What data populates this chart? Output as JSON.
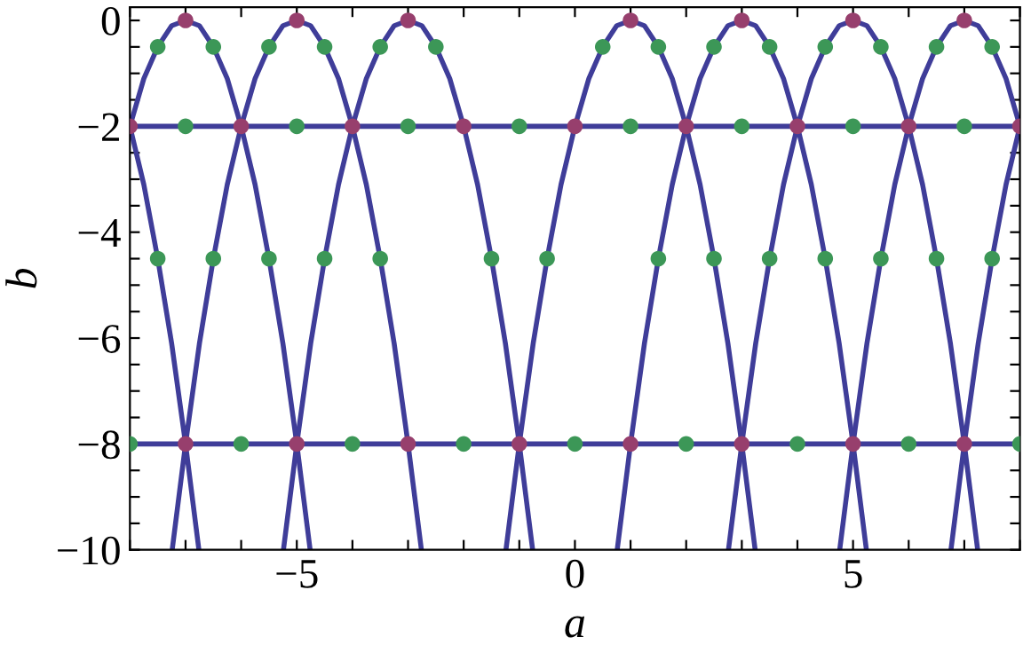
{
  "chart_data": {
    "type": "line",
    "xlabel": "a",
    "ylabel": "b",
    "xlim": [
      -8,
      8
    ],
    "ylim": [
      -10,
      0.25
    ],
    "xticks": [
      {
        "value": -8,
        "label": null
      },
      {
        "value": -7,
        "label": null
      },
      {
        "value": -6,
        "label": null
      },
      {
        "value": -5,
        "label": "−5"
      },
      {
        "value": -4,
        "label": null
      },
      {
        "value": -3,
        "label": null
      },
      {
        "value": -2,
        "label": null
      },
      {
        "value": -1,
        "label": null
      },
      0,
      {
        "value": 1,
        "label": null
      },
      {
        "value": 2,
        "label": null
      },
      {
        "value": 3,
        "label": null
      },
      {
        "value": 4,
        "label": null
      },
      5,
      {
        "value": 6,
        "label": null
      },
      {
        "value": 7,
        "label": null
      },
      {
        "value": 8,
        "label": null
      }
    ],
    "yticks": [
      {
        "value": -10,
        "label": "−10"
      },
      {
        "value": -9.5,
        "label": null
      },
      {
        "value": -9,
        "label": null
      },
      {
        "value": -8.5,
        "label": null
      },
      {
        "value": -8,
        "label": "−8"
      },
      {
        "value": -7.5,
        "label": null
      },
      {
        "value": -7,
        "label": null
      },
      {
        "value": -6.5,
        "label": null
      },
      {
        "value": -6,
        "label": "−6"
      },
      {
        "value": -5.5,
        "label": null
      },
      {
        "value": -5,
        "label": null
      },
      {
        "value": -4.5,
        "label": null
      },
      {
        "value": -4,
        "label": "−4"
      },
      {
        "value": -3.5,
        "label": null
      },
      {
        "value": -3,
        "label": null
      },
      {
        "value": -2.5,
        "label": null
      },
      {
        "value": -2,
        "label": "−2"
      },
      {
        "value": -1.5,
        "label": null
      },
      {
        "value": -1,
        "label": null
      },
      {
        "value": -0.5,
        "label": null
      },
      0
    ],
    "grid": false,
    "line_style": "solid",
    "series": [
      {
        "color": "#3f3d99",
        "x": [
          -8,
          -7.75,
          -7.5,
          -7.25,
          -7,
          -6.76
        ],
        "values": [
          -2,
          -3.1,
          -4.5,
          -6.1,
          -8,
          -10
        ]
      },
      {
        "color": "#3f3d99",
        "x": [
          -8,
          -7.75,
          -7.5,
          -7.25,
          -7,
          -6.75,
          -6.5,
          -6.25,
          -6,
          -5.75,
          -5.5,
          -5.25,
          -5,
          -4.76
        ],
        "values": [
          -2,
          -1.1,
          -0.5,
          -0.1,
          0,
          -0.1,
          -0.5,
          -1.1,
          -2,
          -3.1,
          -4.5,
          -6.1,
          -8,
          -10
        ]
      },
      {
        "color": "#3f3d99",
        "x": [
          -7.24,
          -7,
          -6.75,
          -6.5,
          -6.25,
          -6,
          -5.75,
          -5.5,
          -5.25,
          -5,
          -4.75,
          -4.5,
          -4.25,
          -4,
          -3.75,
          -3.5,
          -3.25,
          -3,
          -2.76
        ],
        "values": [
          -10,
          -8,
          -6.1,
          -4.5,
          -3.1,
          -2,
          -1.1,
          -0.5,
          -0.1,
          0,
          -0.1,
          -0.5,
          -1.1,
          -2,
          -3.1,
          -4.5,
          -6.1,
          -8,
          -10
        ]
      },
      {
        "color": "#3f3d99",
        "x": [
          -5.24,
          -5,
          -4.75,
          -4.5,
          -4.25,
          -4,
          -3.75,
          -3.5,
          -3.25,
          -3,
          -2.75,
          -2.5,
          -2.25,
          -2,
          -1.75,
          -1.5,
          -1.25,
          -1,
          -0.76
        ],
        "values": [
          -10,
          -8,
          -6.1,
          -4.5,
          -3.1,
          -2,
          -1.1,
          -0.5,
          -0.1,
          0,
          -0.1,
          -0.5,
          -1.1,
          -2,
          -3.1,
          -4.5,
          -6.1,
          -8,
          -10
        ]
      },
      {
        "color": "#3f3d99",
        "x": [
          -1.24,
          -1,
          -0.75,
          -0.5,
          -0.25,
          0,
          0.25,
          0.5,
          0.75,
          1,
          1.25,
          1.5,
          1.75,
          2,
          2.25,
          2.5,
          2.75,
          3,
          3.24
        ],
        "values": [
          -10,
          -8,
          -6.1,
          -4.5,
          -3.1,
          -2,
          -1.1,
          -0.5,
          -0.1,
          0,
          -0.1,
          -0.5,
          -1.1,
          -2,
          -3.1,
          -4.5,
          -6.1,
          -8,
          -10
        ]
      },
      {
        "color": "#3f3d99",
        "x": [
          0.76,
          1,
          1.25,
          1.5,
          1.75,
          2,
          2.25,
          2.5,
          2.75,
          3,
          3.25,
          3.5,
          3.75,
          4,
          4.25,
          4.5,
          4.75,
          5,
          5.24
        ],
        "values": [
          -10,
          -8,
          -6.1,
          -4.5,
          -3.1,
          -2,
          -1.1,
          -0.5,
          -0.1,
          0,
          -0.1,
          -0.5,
          -1.1,
          -2,
          -3.1,
          -4.5,
          -6.1,
          -8,
          -10
        ]
      },
      {
        "color": "#3f3d99",
        "x": [
          2.76,
          3,
          3.25,
          3.5,
          3.75,
          4,
          4.25,
          4.5,
          4.75,
          5,
          5.25,
          5.5,
          5.75,
          6,
          6.25,
          6.5,
          6.75,
          7,
          7.24
        ],
        "values": [
          -10,
          -8,
          -6.1,
          -4.5,
          -3.1,
          -2,
          -1.1,
          -0.5,
          -0.1,
          0,
          -0.1,
          -0.5,
          -1.1,
          -2,
          -3.1,
          -4.5,
          -6.1,
          -8,
          -10
        ]
      },
      {
        "color": "#3f3d99",
        "x": [
          4.76,
          5,
          5.25,
          5.5,
          5.75,
          6,
          6.25,
          6.5,
          6.75,
          7,
          7.25,
          7.5,
          7.75,
          8
        ],
        "values": [
          -10,
          -8,
          -6.1,
          -4.5,
          -3.1,
          -2,
          -1.1,
          -0.5,
          -0.1,
          0,
          -0.1,
          -0.5,
          -1.1,
          -2
        ]
      },
      {
        "color": "#3f3d99",
        "x": [
          6.76,
          7,
          7.25,
          7.5,
          7.75,
          8
        ],
        "values": [
          -10,
          -8,
          -6.1,
          -4.5,
          -3.1,
          -2
        ]
      },
      {
        "color": "#3f3d99",
        "x": [
          -8,
          8
        ],
        "values": [
          -2,
          -2
        ]
      },
      {
        "color": "#3f3d99",
        "x": [
          -8,
          8
        ],
        "values": [
          -8,
          -8
        ]
      },
      {
        "type": "scatter",
        "marker": "circle",
        "color": "#3c9757",
        "x": [
          -7.5,
          -6.5,
          -5.5,
          -4.5,
          -3.5,
          -2.5,
          0.5,
          1.5,
          2.5,
          3.5,
          4.5,
          5.5,
          6.5,
          7.5,
          -7,
          -5,
          -3,
          -1,
          1,
          3,
          5,
          7,
          -7.5,
          -6.5,
          -5.5,
          -4.5,
          -3.5,
          -1.5,
          -0.5,
          1.5,
          2.5,
          3.5,
          4.5,
          5.5,
          6.5,
          7.5,
          -8,
          -6,
          -4,
          -2,
          0,
          2,
          4,
          6,
          8
        ],
        "values": [
          -0.5,
          -0.5,
          -0.5,
          -0.5,
          -0.5,
          -0.5,
          -0.5,
          -0.5,
          -0.5,
          -0.5,
          -0.5,
          -0.5,
          -0.5,
          -0.5,
          -2,
          -2,
          -2,
          -2,
          -2,
          -2,
          -2,
          -2,
          -4.5,
          -4.5,
          -4.5,
          -4.5,
          -4.5,
          -4.5,
          -4.5,
          -4.5,
          -4.5,
          -4.5,
          -4.5,
          -4.5,
          -4.5,
          -4.5,
          -8,
          -8,
          -8,
          -8,
          -8,
          -8,
          -8,
          -8,
          -8
        ]
      },
      {
        "type": "scatter",
        "marker": "circle",
        "color": "#973f6d",
        "x": [
          -7,
          -5,
          -3,
          1,
          3,
          5,
          7,
          -8,
          -6,
          -4,
          -2,
          0,
          2,
          4,
          6,
          8,
          -7,
          -5,
          -3,
          -1,
          1,
          3,
          5,
          7
        ],
        "values": [
          0,
          0,
          0,
          0,
          0,
          0,
          0,
          -2,
          -2,
          -2,
          -2,
          -2,
          -2,
          -2,
          -2,
          -2,
          -8,
          -8,
          -8,
          -8,
          -8,
          -8,
          -8,
          -8
        ]
      }
    ]
  }
}
